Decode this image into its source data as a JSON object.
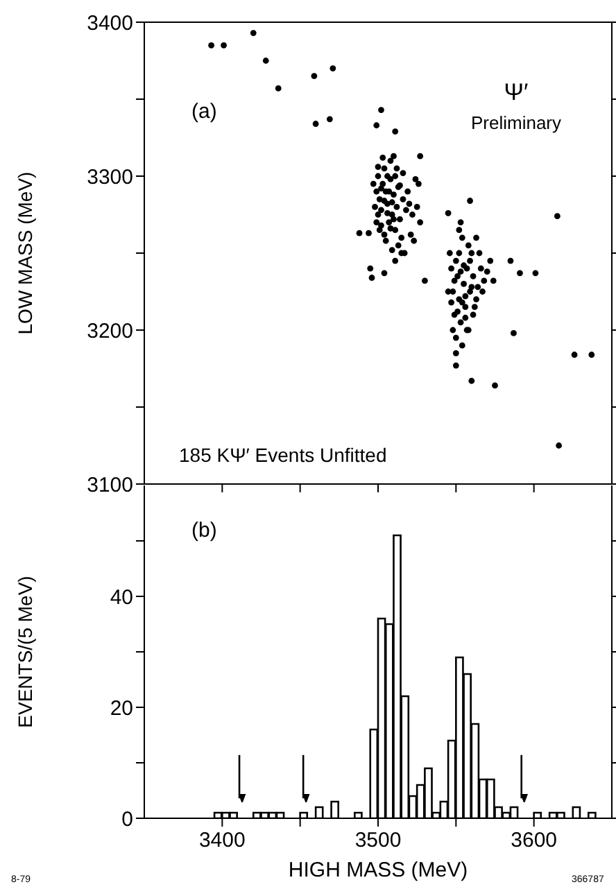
{
  "chart_data": [
    {
      "type": "scatter",
      "ylabel": "LOW MASS   (MeV)",
      "annotations": [
        "(a)",
        "Ψ′",
        "Preliminary",
        "185 KΨ′ Events Unfitted"
      ],
      "x": [
        3393,
        3401,
        3420,
        3428,
        3436,
        3459,
        3471,
        3460,
        3469,
        3502,
        3499,
        3511,
        3527,
        3488,
        3494,
        3495,
        3496,
        3504,
        3530,
        3615,
        3626,
        3637,
        3616,
        3587,
        3591,
        3601,
        3585,
        3550,
        3550,
        3560,
        3575,
        3559,
        3545,
        3497,
        3499,
        3500,
        3501,
        3502,
        3503,
        3504,
        3505,
        3506,
        3507,
        3508,
        3509,
        3510,
        3511,
        3512,
        3513,
        3514,
        3515,
        3516,
        3500,
        3502,
        3504,
        3506,
        3508,
        3510,
        3503,
        3499,
        3501,
        3505,
        3507,
        3509,
        3511,
        3513,
        3515,
        3517,
        3518,
        3520,
        3522,
        3524,
        3526,
        3521,
        3527,
        3525,
        3519,
        3512,
        3506,
        3504,
        3502,
        3500,
        3508,
        3510,
        3514,
        3516,
        3523,
        3498,
        3511,
        3509,
        3546,
        3547,
        3548,
        3549,
        3550,
        3551,
        3552,
        3553,
        3554,
        3555,
        3556,
        3557,
        3558,
        3559,
        3560,
        3561,
        3562,
        3563,
        3564,
        3566,
        3568,
        3570,
        3572,
        3574,
        3548,
        3550,
        3552,
        3553,
        3555,
        3556,
        3557,
        3551,
        3549,
        3545,
        3547,
        3559,
        3561,
        3563,
        3565,
        3567,
        3554,
        3558,
        3560,
        3552,
        3554,
        3556,
        3553
      ],
      "series": [
        {
          "color": "#000000",
          "values": [
            3385,
            3385,
            3393,
            3375,
            3357,
            3365,
            3370,
            3334,
            3337,
            3343,
            3333,
            3329,
            3313,
            3263,
            3263,
            3240,
            3234,
            3237,
            3232,
            3274,
            3184,
            3184,
            3125,
            3198,
            3237,
            3237,
            3245,
            3185,
            3177,
            3167,
            3164,
            3284,
            3276,
            3295,
            3290,
            3300,
            3285,
            3278,
            3295,
            3305,
            3290,
            3282,
            3270,
            3298,
            3275,
            3288,
            3265,
            3280,
            3293,
            3272,
            3260,
            3285,
            3275,
            3268,
            3262,
            3300,
            3310,
            3313,
            3312,
            3270,
            3265,
            3258,
            3290,
            3283,
            3300,
            3255,
            3250,
            3250,
            3278,
            3282,
            3275,
            3298,
            3295,
            3262,
            3270,
            3280,
            3290,
            3305,
            3276,
            3284,
            3292,
            3306,
            3266,
            3272,
            3294,
            3302,
            3258,
            3280,
            3245,
            3252,
            3250,
            3240,
            3225,
            3210,
            3245,
            3235,
            3220,
            3205,
            3260,
            3230,
            3215,
            3240,
            3200,
            3225,
            3250,
            3235,
            3215,
            3260,
            3228,
            3240,
            3232,
            3238,
            3245,
            3232,
            3200,
            3195,
            3265,
            3270,
            3242,
            3222,
            3200,
            3212,
            3232,
            3225,
            3218,
            3245,
            3210,
            3220,
            3250,
            3225,
            3190,
            3255,
            3228,
            3250,
            3218,
            3208,
            3238
          ]
        }
      ],
      "marker": "circle",
      "xlim": [
        3350,
        3650
      ],
      "xticks": [
        3400,
        3450,
        3500,
        3550,
        3600
      ],
      "ylim": [
        3100,
        3400
      ],
      "yticks": [
        {
          "value": 3100,
          "label": "3100"
        },
        {
          "value": 3150,
          "label": null
        },
        3200,
        {
          "value": 3250,
          "label": null
        },
        3300,
        {
          "value": 3350,
          "label": null
        },
        3400
      ],
      "tick_labels": "y",
      "grid": false,
      "legend": false
    },
    {
      "type": "histogram",
      "xlabel": "HIGH MASS     (MeV)",
      "ylabel": "EVENTS/(5 MeV)",
      "annotations": [
        "(b)",
        "8-79",
        "366787"
      ],
      "bins": [
        3350,
        3355,
        3360,
        3365,
        3370,
        3375,
        3380,
        3385,
        3390,
        3395,
        3400,
        3405,
        3410,
        3415,
        3420,
        3425,
        3430,
        3435,
        3440,
        3445,
        3450,
        3455,
        3460,
        3465,
        3470,
        3475,
        3480,
        3485,
        3490,
        3495,
        3500,
        3505,
        3510,
        3515,
        3520,
        3525,
        3530,
        3535,
        3540,
        3545,
        3550,
        3555,
        3560,
        3565,
        3570,
        3575,
        3580,
        3585,
        3590,
        3595,
        3600,
        3605,
        3610,
        3615,
        3620,
        3625,
        3630,
        3635,
        3640,
        3645,
        3650
      ],
      "values": [
        0,
        0,
        0,
        0,
        0,
        0,
        0,
        0,
        0,
        1,
        1,
        1,
        0,
        0,
        1,
        1,
        1,
        1,
        0,
        0,
        1,
        0,
        2,
        0,
        3,
        0,
        0,
        1,
        0,
        16,
        36,
        35,
        51,
        22,
        4,
        6,
        9,
        1,
        3,
        14,
        29,
        26,
        17,
        7,
        7,
        2,
        1,
        2,
        0,
        0,
        1,
        0,
        1,
        1,
        0,
        2,
        0,
        1,
        0,
        0
      ],
      "color": "#000000",
      "xlim": [
        3350,
        3650
      ],
      "xticks": [
        3400,
        {
          "value": 3450,
          "label": null
        },
        3500,
        {
          "value": 3550,
          "label": null
        },
        3600
      ],
      "ylim": [
        0,
        60
      ],
      "yticks": [
        0,
        {
          "value": 10,
          "label": null
        },
        20,
        {
          "value": 30,
          "label": null
        },
        40,
        {
          "value": 50,
          "label": null
        }
      ],
      "ref_lines": [
        {
          "axis": "x",
          "value": 3411,
          "label": null
        },
        {
          "axis": "x",
          "value": 3452,
          "label": null
        },
        {
          "axis": "x",
          "value": 3592,
          "label": null
        }
      ],
      "grid": false,
      "legend": false
    }
  ]
}
